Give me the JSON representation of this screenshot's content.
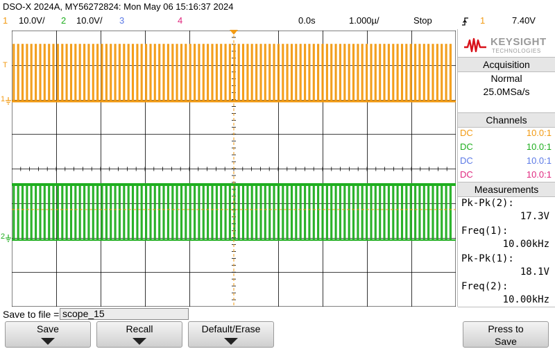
{
  "header": {
    "title": "DSO-X 2024A, MY56272824: Mon May 06 15:16:37 2024",
    "ch1_num": "1",
    "ch1_scale": "10.0V/",
    "ch2_num": "2",
    "ch2_scale": "10.0V/",
    "ch3_num": "3",
    "ch4_num": "4",
    "time_pos": "0.0s",
    "timebase": "1.000µ/",
    "run_state": "Stop",
    "trigger_icon": "trigger-edge-icon",
    "trigger_source": "1",
    "trigger_level": "7.40V"
  },
  "colors": {
    "ch1": "#f29a12",
    "ch2": "#1fae1f",
    "ch3": "#5b79e6",
    "ch4": "#e0287f",
    "keysight_red": "#d8121a"
  },
  "brand": {
    "name": "KEYSIGHT",
    "sub": "TECHNOLOGIES"
  },
  "acquisition": {
    "title": "Acquisition",
    "mode": "Normal",
    "rate": "25.0MSa/s"
  },
  "channels": {
    "title": "Channels",
    "items": [
      {
        "coupling": "DC",
        "probe": "10.0:1"
      },
      {
        "coupling": "DC",
        "probe": "10.0:1"
      },
      {
        "coupling": "DC",
        "probe": "10.0:1"
      },
      {
        "coupling": "DC",
        "probe": "10.0:1"
      }
    ]
  },
  "measurements": {
    "title": "Measurements",
    "items": [
      {
        "label": "Pk-Pk(2):",
        "value": "17.3V"
      },
      {
        "label": "Freq(1):",
        "value": "10.00kHz"
      },
      {
        "label": "Pk-Pk(1):",
        "value": "18.1V"
      },
      {
        "label": "Freq(2):",
        "value": "10.00kHz"
      }
    ]
  },
  "save": {
    "label": "Save to file =",
    "filename": "scope_15"
  },
  "softkeys": {
    "save": "Save",
    "recall": "Recall",
    "default": "Default/Erase",
    "press_to": "Press to",
    "press_save": "Save"
  },
  "markers": {
    "t": "T",
    "ch1": "1",
    "ch2": "2"
  }
}
